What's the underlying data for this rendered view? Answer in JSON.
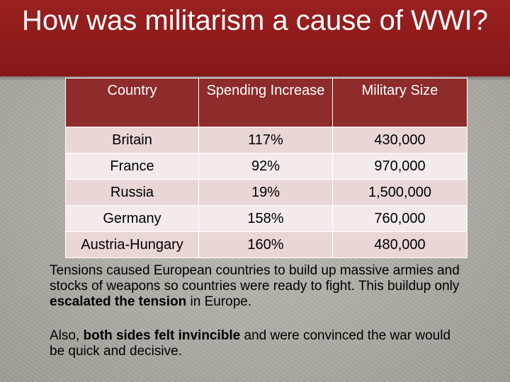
{
  "slide": {
    "title": "How was militarism a cause of WWI?"
  },
  "table": {
    "headers": [
      "Country",
      "Spending Increase",
      "Military Size"
    ],
    "rows": [
      {
        "country": "Britain",
        "spending_increase": "117%",
        "military_size": "430,000"
      },
      {
        "country": "France",
        "spending_increase": "92%",
        "military_size": "970,000"
      },
      {
        "country": "Russia",
        "spending_increase": "19%",
        "military_size": "1,500,000"
      },
      {
        "country": "Germany",
        "spending_increase": "158%",
        "military_size": "760,000"
      },
      {
        "country": "Austria-Hungary",
        "spending_increase": "160%",
        "military_size": "480,000"
      }
    ]
  },
  "paragraphs": {
    "p1_part1": "Tensions caused European countries to build up massive armies and stocks of weapons so countries were ready to fight. This buildup only ",
    "p1_bold": "escalated the tension",
    "p1_part2": " in Europe.",
    "p2_part1": "Also, ",
    "p2_bold": "both sides felt invincible",
    "p2_part2": " and were convinced the war would be quick and decisive."
  },
  "colors": {
    "title_bar": "#8c1b1b",
    "header_cell": "#8e2b2b",
    "row_odd": "#e9d7d5",
    "row_even": "#f3ebea",
    "background": "#aeaca4"
  }
}
